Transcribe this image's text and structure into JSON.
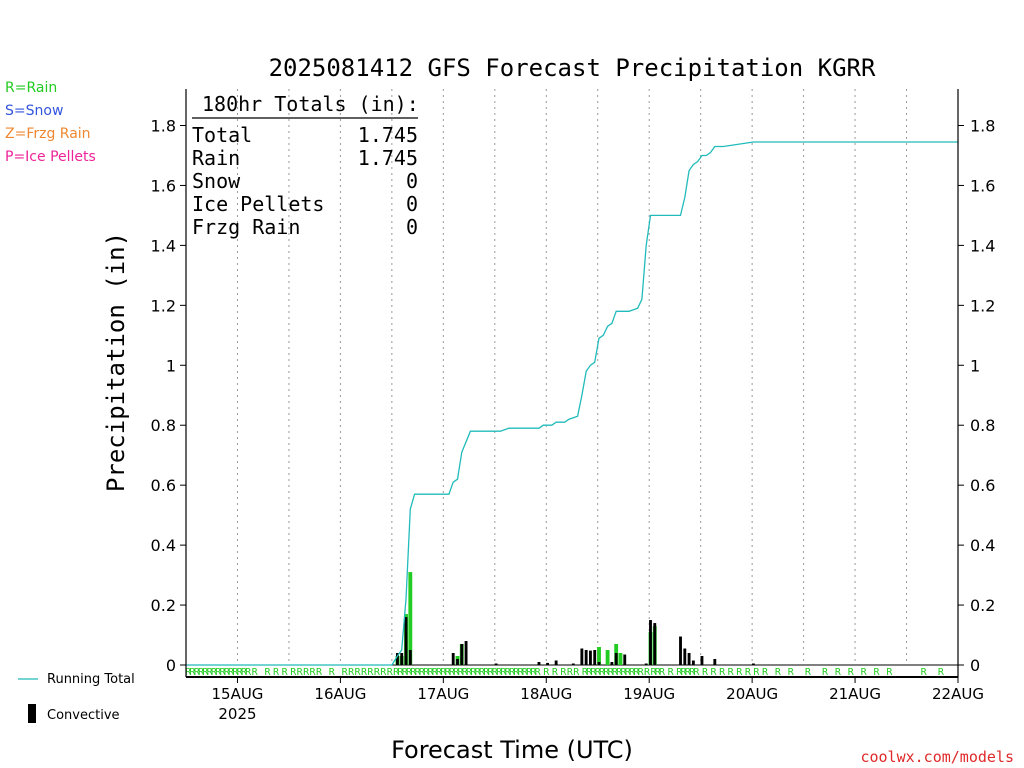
{
  "title": "2025081412 GFS Forecast Precipitation KGRR",
  "legend_left": [
    {
      "text": "R=Rain",
      "color": "#22cc22"
    },
    {
      "text": "S=Snow",
      "color": "#3355dd"
    },
    {
      "text": "Z=Frzg Rain",
      "color": "#ee8833"
    },
    {
      "text": "P=Ice Pellets",
      "color": "#ee2299"
    }
  ],
  "legend_bottom": {
    "running_total": "Running Total",
    "convective": "Convective",
    "running_total_color": "#22bbbb",
    "convective_color": "#000000"
  },
  "totals": {
    "heading": "180hr Totals (in):",
    "rows": [
      {
        "label": "Total",
        "value": "1.745"
      },
      {
        "label": "Rain",
        "value": "1.745"
      },
      {
        "label": "Snow",
        "value": "0"
      },
      {
        "label": "Ice Pellets",
        "value": "0"
      },
      {
        "label": "Frzg Rain",
        "value": "0"
      }
    ]
  },
  "watermark": "coolwx.com/models",
  "chart_data": {
    "type": "bar",
    "title": "2025081412 GFS Forecast Precipitation KGRR",
    "xlabel": "Forecast Time (UTC)",
    "ylabel": "Precipitation (in)",
    "ylim": [
      0,
      1.92
    ],
    "xlim_hours": [
      0,
      180
    ],
    "yticks": [
      0,
      0.2,
      0.4,
      0.6,
      0.8,
      1,
      1.2,
      1.4,
      1.6,
      1.8
    ],
    "ytick_labels": [
      "0",
      "0.2",
      "0.4",
      "0.6",
      "0.8",
      "1",
      "1.2",
      "1.4",
      "1.6",
      "1.8"
    ],
    "xticks": [
      {
        "hour": 12,
        "label": "15AUG",
        "sub": "2025"
      },
      {
        "hour": 36,
        "label": "16AUG",
        "sub": ""
      },
      {
        "hour": 60,
        "label": "17AUG",
        "sub": ""
      },
      {
        "hour": 84,
        "label": "18AUG",
        "sub": ""
      },
      {
        "hour": 108,
        "label": "19AUG",
        "sub": ""
      },
      {
        "hour": 132,
        "label": "20AUG",
        "sub": ""
      },
      {
        "hour": 156,
        "label": "21AUG",
        "sub": ""
      },
      {
        "hour": 180,
        "label": "22AUG",
        "sub": ""
      }
    ],
    "grid": "vertical dotted at 6-hourly (00Z solid-dotted, 12Z dotted)",
    "series": [
      {
        "name": "Running Total",
        "type": "line",
        "color": "#22bbbb",
        "x": [
          0,
          48,
          49.3,
          50.3,
          51.3,
          52.3,
          53.3,
          54.3,
          55.3,
          58.3,
          61.3,
          62.3,
          63.3,
          64.3,
          66.3,
          73.3,
          75.3,
          82.3,
          83.3,
          85.3,
          86.3,
          88.3,
          89.3,
          91.3,
          92.3,
          93.3,
          94.3,
          95.3,
          96.3,
          97.3,
          98.3,
          99.3,
          100.3,
          101.3,
          103.3,
          105.3,
          106.3,
          107.3,
          108.3,
          109.3,
          110.3,
          115.3,
          116.3,
          117.3,
          118.3,
          119.3,
          120.3,
          121.3,
          122.3,
          123.3,
          124.3,
          125.3,
          132.3,
          180
        ],
        "y": [
          0,
          0,
          0.03,
          0.05,
          0.22,
          0.52,
          0.57,
          0.57,
          0.57,
          0.57,
          0.57,
          0.61,
          0.62,
          0.71,
          0.78,
          0.78,
          0.79,
          0.79,
          0.8,
          0.8,
          0.81,
          0.81,
          0.82,
          0.83,
          0.9,
          0.98,
          1.0,
          1.01,
          1.09,
          1.1,
          1.13,
          1.14,
          1.18,
          1.18,
          1.18,
          1.19,
          1.22,
          1.4,
          1.5,
          1.5,
          1.5,
          1.5,
          1.56,
          1.65,
          1.67,
          1.68,
          1.7,
          1.7,
          1.71,
          1.73,
          1.73,
          1.73,
          1.745,
          1.745
        ]
      },
      {
        "name": "Rain",
        "type": "bar",
        "color": "#22cc22",
        "x": [
          49.3,
          50.3,
          51.3,
          52.3,
          63.3,
          64.3,
          96.3,
          98.3,
          100.3,
          101.3,
          108.3,
          109.3
        ],
        "y": [
          0.03,
          0.03,
          0.17,
          0.31,
          0.03,
          0.07,
          0.06,
          0.05,
          0.07,
          0.04,
          0.11,
          0.13
        ]
      },
      {
        "name": "Convective",
        "type": "bar",
        "color": "#000000",
        "x": [
          49.3,
          50.3,
          51.3,
          52.3,
          62.3,
          63.3,
          64.3,
          65.3,
          72.3,
          82.3,
          84.3,
          86.3,
          90.3,
          92.3,
          93.3,
          94.3,
          95.3,
          96.3,
          99.3,
          100.3,
          102.3,
          107.3,
          108.3,
          109.3,
          115.3,
          116.3,
          117.3,
          118.3,
          120.3,
          123.3,
          132.3
        ],
        "y": [
          0.04,
          0.04,
          0.16,
          0.05,
          0.04,
          0.02,
          0.07,
          0.08,
          0.005,
          0.01,
          0.007,
          0.015,
          0.005,
          0.055,
          0.05,
          0.048,
          0.05,
          0.01,
          0.01,
          0.04,
          0.035,
          0.005,
          0.15,
          0.14,
          0.095,
          0.055,
          0.04,
          0.015,
          0.03,
          0.02,
          0.005
        ]
      }
    ],
    "ptype_row_hours": [
      0.5,
      1.5,
      2.5,
      3.5,
      4.5,
      5.5,
      6.5,
      7.5,
      8.5,
      9.5,
      10.5,
      11.5,
      12.5,
      13.5,
      14.5,
      16,
      19,
      21,
      23,
      25,
      26.5,
      28,
      29.5,
      31,
      34,
      37,
      38.5,
      40,
      41.5,
      43,
      44.5,
      46,
      47.5,
      49,
      50,
      51,
      52,
      53,
      54,
      55,
      56,
      57,
      58,
      59,
      60,
      61,
      62,
      63,
      64,
      65,
      66,
      67,
      68,
      69,
      70,
      71,
      72,
      73,
      74,
      75,
      76,
      77,
      78,
      79,
      80,
      81,
      82,
      84,
      86,
      88,
      89.5,
      91,
      93,
      94,
      95,
      96,
      97,
      98,
      99,
      100,
      101,
      102,
      103,
      104,
      105,
      106,
      107.5,
      109,
      110,
      111,
      113,
      115,
      116,
      117,
      118,
      119,
      121,
      123,
      125,
      127,
      129,
      131,
      133,
      135,
      138,
      141,
      145,
      149,
      152,
      155,
      158,
      161,
      164,
      172,
      176
    ]
  }
}
